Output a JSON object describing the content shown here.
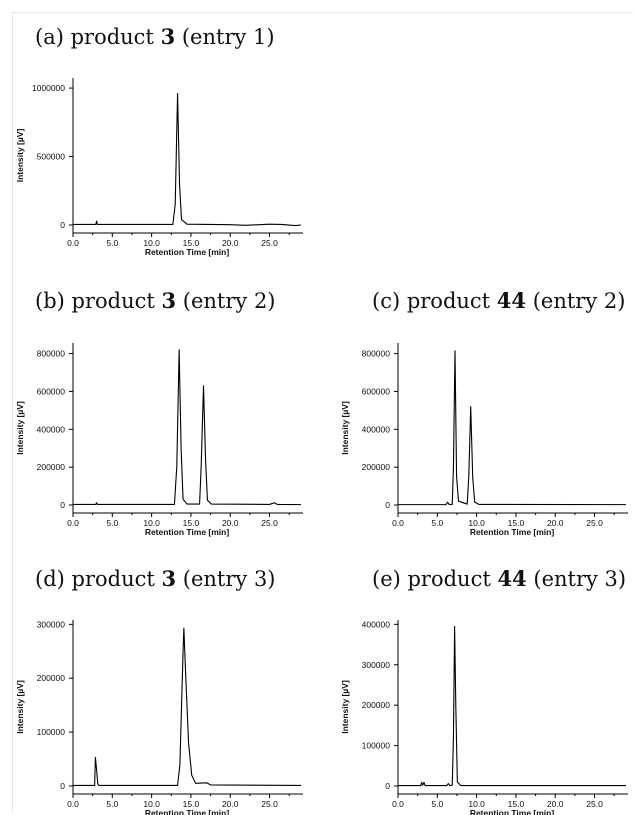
{
  "chart_data": [
    {
      "id": "a",
      "type": "line",
      "title_prefix": "(a) product ",
      "title_compound": "3",
      "title_suffix": " (entry 1)",
      "xlabel": "Retention Time [min]",
      "ylabel": "Intensity [µV]",
      "xlim": [
        0,
        29
      ],
      "ylim": [
        0,
        1000000
      ],
      "xticks": [
        0,
        5,
        10,
        15,
        20,
        25
      ],
      "xtick_labels": [
        "0.0",
        "5.0",
        "10.0",
        "15.0",
        "20.0",
        "25.0"
      ],
      "yticks": [
        0,
        500000,
        1000000
      ],
      "ytick_labels": [
        "0",
        "500000",
        "1000000"
      ],
      "series": [
        {
          "values": [
            [
              0,
              4000
            ],
            [
              2.9,
              4000
            ],
            [
              3.0,
              28000
            ],
            [
              3.1,
              4000
            ],
            [
              12.7,
              4000
            ],
            [
              13.0,
              150000
            ],
            [
              13.3,
              960000
            ],
            [
              13.55,
              300000
            ],
            [
              13.8,
              40000
            ],
            [
              14.5,
              6000
            ],
            [
              20,
              2000
            ],
            [
              22,
              -2000
            ],
            [
              25,
              6000
            ],
            [
              26.5,
              4000
            ],
            [
              28.3,
              -4000
            ],
            [
              29,
              0
            ]
          ]
        }
      ]
    },
    {
      "id": "b",
      "type": "line",
      "title_prefix": "(b) product ",
      "title_compound": "3",
      "title_suffix": " (entry 2)",
      "xlabel": "Retention Time [min]",
      "ylabel": "Intensity [µV]",
      "xlim": [
        0,
        29
      ],
      "ylim": [
        0,
        820000
      ],
      "xticks": [
        0,
        5,
        10,
        15,
        20,
        25
      ],
      "xtick_labels": [
        "0.0",
        "5.0",
        "10.0",
        "15.0",
        "20.0",
        "25.0"
      ],
      "yticks": [
        0,
        200000,
        400000,
        600000,
        800000
      ],
      "ytick_labels": [
        "0",
        "200000",
        "400000",
        "600000",
        "800000"
      ],
      "series": [
        {
          "values": [
            [
              0,
              3000
            ],
            [
              2.9,
              3000
            ],
            [
              3.0,
              12000
            ],
            [
              3.1,
              3000
            ],
            [
              12.9,
              3000
            ],
            [
              13.2,
              200000
            ],
            [
              13.5,
              820000
            ],
            [
              13.75,
              300000
            ],
            [
              14.0,
              30000
            ],
            [
              14.5,
              5000
            ],
            [
              16.1,
              5000
            ],
            [
              16.3,
              200000
            ],
            [
              16.6,
              630000
            ],
            [
              16.85,
              250000
            ],
            [
              17.1,
              25000
            ],
            [
              17.6,
              5000
            ],
            [
              25,
              3000
            ],
            [
              25.6,
              12000
            ],
            [
              26,
              3000
            ],
            [
              29,
              2000
            ]
          ]
        }
      ]
    },
    {
      "id": "c",
      "type": "line",
      "title_prefix": "(c) product ",
      "title_compound": "44",
      "title_suffix": " (entry 2)",
      "xlabel": "Retention Time [min]",
      "ylabel": "Intensity [µV]",
      "xlim": [
        0,
        29
      ],
      "ylim": [
        0,
        820000
      ],
      "xticks": [
        0,
        5,
        10,
        15,
        20,
        25
      ],
      "xtick_labels": [
        "0.0",
        "5.0",
        "10.0",
        "15.0",
        "20.0",
        "25.0"
      ],
      "yticks": [
        0,
        200000,
        400000,
        600000,
        800000
      ],
      "ytick_labels": [
        "0",
        "200000",
        "400000",
        "600000",
        "800000"
      ],
      "series": [
        {
          "values": [
            [
              0,
              2000
            ],
            [
              6.1,
              2000
            ],
            [
              6.3,
              15000
            ],
            [
              6.5,
              3000
            ],
            [
              6.9,
              3000
            ],
            [
              7.05,
              200000
            ],
            [
              7.25,
              815000
            ],
            [
              7.45,
              150000
            ],
            [
              7.7,
              20000
            ],
            [
              8.8,
              5000
            ],
            [
              9.0,
              150000
            ],
            [
              9.25,
              520000
            ],
            [
              9.5,
              150000
            ],
            [
              9.75,
              15000
            ],
            [
              10.3,
              3000
            ],
            [
              29,
              2000
            ]
          ]
        }
      ]
    },
    {
      "id": "d",
      "type": "line",
      "title_prefix": "(d) product ",
      "title_compound": "3",
      "title_suffix": " (entry 3)",
      "xlabel": "Retention Time [min]",
      "ylabel": "Intensity [µV]",
      "xlim": [
        0,
        29
      ],
      "ylim": [
        0,
        300000
      ],
      "xticks": [
        0,
        5,
        10,
        15,
        20,
        25
      ],
      "xtick_labels": [
        "0.0",
        "5.0",
        "10.0",
        "15.0",
        "20.0",
        "25.0"
      ],
      "yticks": [
        0,
        100000,
        200000,
        300000
      ],
      "ytick_labels": [
        "0",
        "100000",
        "200000",
        "300000"
      ],
      "series": [
        {
          "values": [
            [
              0,
              1000
            ],
            [
              2.75,
              1000
            ],
            [
              2.85,
              53000
            ],
            [
              3.0,
              30000
            ],
            [
              3.15,
              4000
            ],
            [
              3.3,
              1000
            ],
            [
              13.3,
              1000
            ],
            [
              13.6,
              40000
            ],
            [
              14.0,
              250000
            ],
            [
              14.1,
              293000
            ],
            [
              14.35,
              200000
            ],
            [
              14.7,
              80000
            ],
            [
              15.1,
              20000
            ],
            [
              15.6,
              5000
            ],
            [
              17.0,
              6000
            ],
            [
              17.5,
              2000
            ],
            [
              29,
              1000
            ]
          ]
        }
      ]
    },
    {
      "id": "e",
      "type": "line",
      "title_prefix": "(e) product ",
      "title_compound": "44",
      "title_suffix": " (entry 3)",
      "xlabel": "Retention Time [min]",
      "ylabel": "Intensity [µV]",
      "xlim": [
        0,
        29
      ],
      "ylim": [
        0,
        400000
      ],
      "xticks": [
        0,
        5,
        10,
        15,
        20,
        25
      ],
      "xtick_labels": [
        "0.0",
        "5.0",
        "10.0",
        "15.0",
        "20.0",
        "25.0"
      ],
      "yticks": [
        0,
        100000,
        200000,
        300000,
        400000
      ],
      "ytick_labels": [
        "0",
        "100000",
        "200000",
        "300000",
        "400000"
      ],
      "series": [
        {
          "values": [
            [
              0,
              1000
            ],
            [
              2.9,
              1000
            ],
            [
              3.0,
              9000
            ],
            [
              3.15,
              2000
            ],
            [
              3.3,
              9000
            ],
            [
              3.45,
              1000
            ],
            [
              6.2,
              1000
            ],
            [
              6.4,
              6000
            ],
            [
              6.6,
              1000
            ],
            [
              6.9,
              2000
            ],
            [
              7.05,
              120000
            ],
            [
              7.2,
              395000
            ],
            [
              7.35,
              200000
            ],
            [
              7.55,
              10000
            ],
            [
              8.0,
              1000
            ],
            [
              29,
              1000
            ]
          ]
        }
      ]
    }
  ]
}
